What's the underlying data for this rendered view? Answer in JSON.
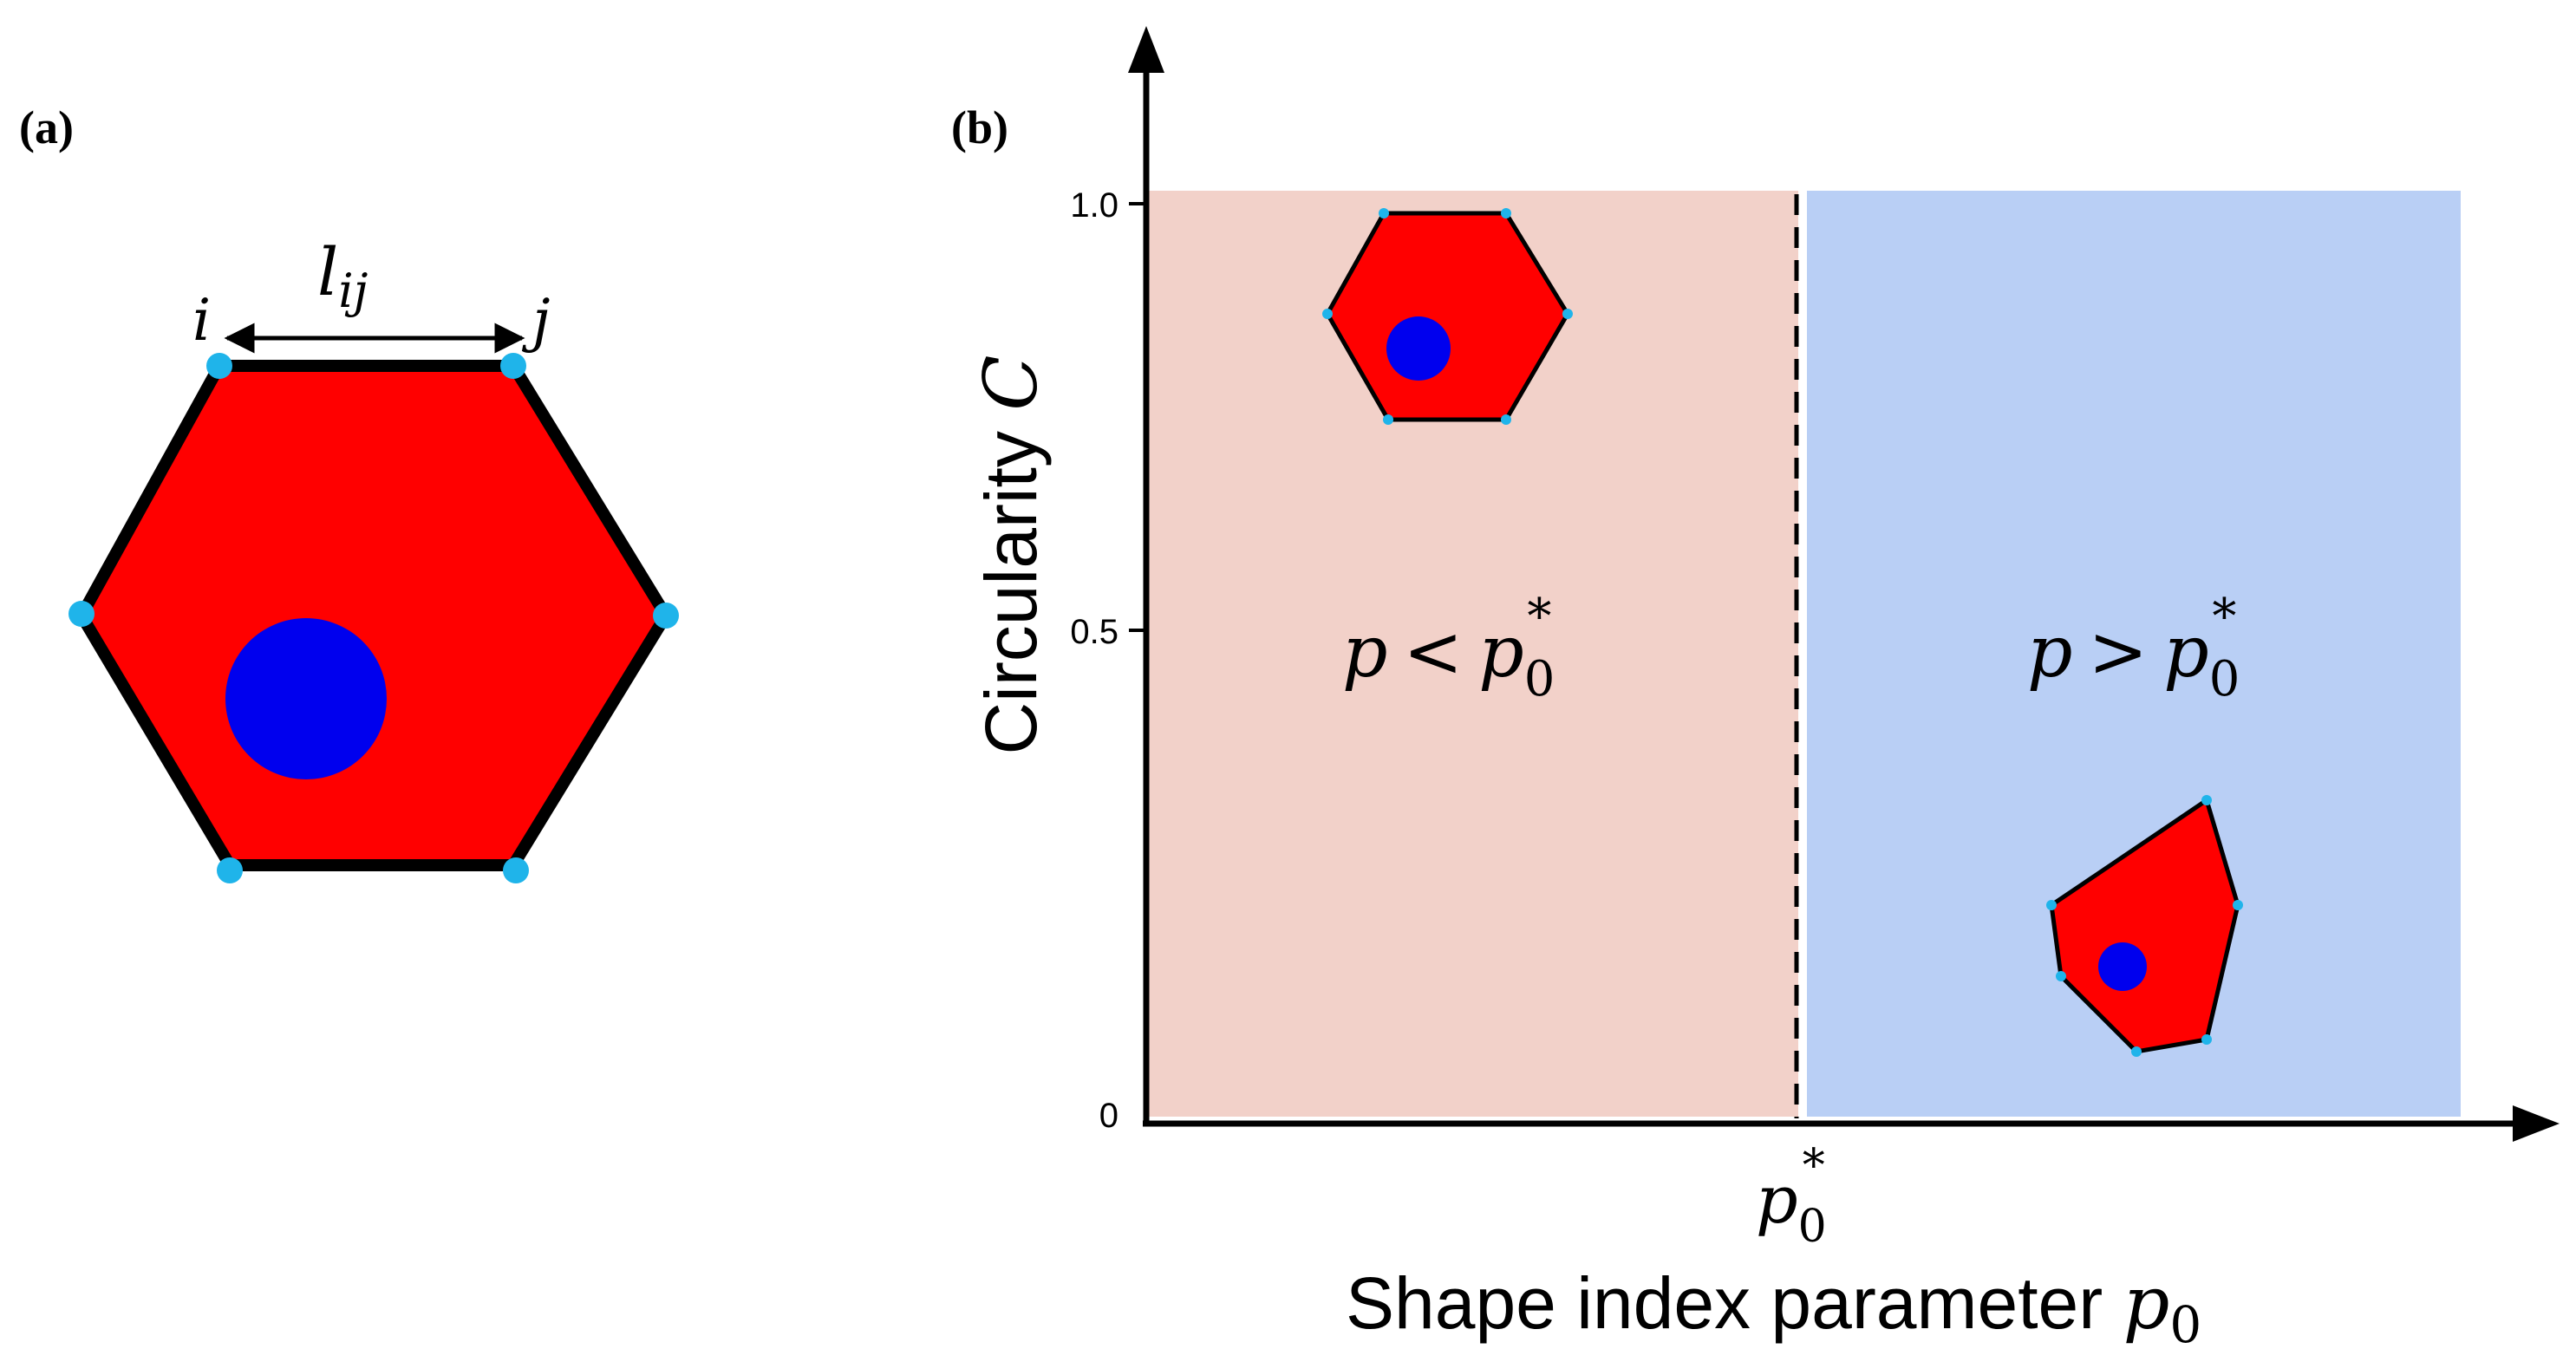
{
  "panel_a": {
    "label": "(a)",
    "vertex_i": "i",
    "vertex_j": "j",
    "edge_label_base": "l",
    "edge_label_sub": "ij"
  },
  "panel_b": {
    "label": "(b)",
    "y_axis_label_text": "Circularity ",
    "y_axis_label_symbol": "C",
    "x_axis_label_text": "Shape index parameter ",
    "x_axis_label_symbol": "p",
    "x_axis_label_sub": "0",
    "y_ticks": [
      "1.0",
      "0.5",
      "0"
    ],
    "threshold_base": "p",
    "threshold_sub": "0",
    "threshold_sup": "*",
    "left_region": {
      "base": "p",
      "relation": "<",
      "rhs": "p",
      "rhs_sub": "0",
      "rhs_sup": "*"
    },
    "right_region": {
      "base": "p",
      "relation": ">",
      "rhs": "p",
      "rhs_sub": "0",
      "rhs_sup": "*"
    }
  },
  "colors": {
    "cell_fill": "#ff0000",
    "nucleus": "#0000ee",
    "vertex": "#1fb4ea",
    "left_region_bg": "#f2d1c9",
    "right_region_bg": "#b9cff5",
    "axis": "#000000"
  }
}
